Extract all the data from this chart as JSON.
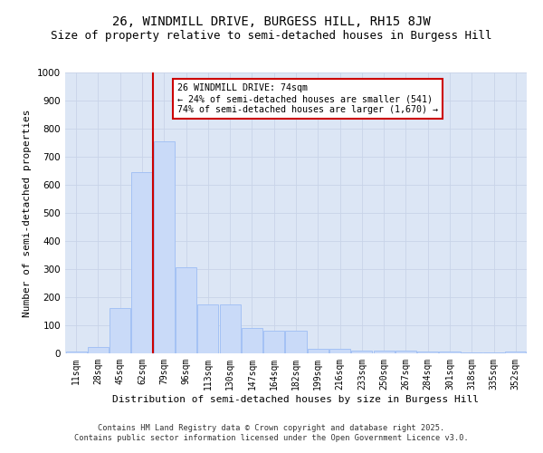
{
  "title": "26, WINDMILL DRIVE, BURGESS HILL, RH15 8JW",
  "subtitle": "Size of property relative to semi-detached houses in Burgess Hill",
  "xlabel": "Distribution of semi-detached houses by size in Burgess Hill",
  "ylabel": "Number of semi-detached properties",
  "bin_labels": [
    "11sqm",
    "28sqm",
    "45sqm",
    "62sqm",
    "79sqm",
    "96sqm",
    "113sqm",
    "130sqm",
    "147sqm",
    "164sqm",
    "182sqm",
    "199sqm",
    "216sqm",
    "233sqm",
    "250sqm",
    "267sqm",
    "284sqm",
    "301sqm",
    "318sqm",
    "335sqm",
    "352sqm"
  ],
  "bar_values": [
    5,
    22,
    160,
    645,
    755,
    305,
    175,
    175,
    90,
    80,
    80,
    15,
    15,
    10,
    10,
    10,
    5,
    5,
    3,
    3,
    5
  ],
  "bar_color": "#c9daf8",
  "bar_edgecolor": "#a4c2f4",
  "vline_bin_index": 4,
  "vline_color": "#cc0000",
  "annotation_text": "26 WINDMILL DRIVE: 74sqm\n← 24% of semi-detached houses are smaller (541)\n74% of semi-detached houses are larger (1,670) →",
  "annotation_box_edgecolor": "#cc0000",
  "annotation_box_facecolor": "#ffffff",
  "grid_color": "#c8d4e8",
  "background_color": "#dce6f5",
  "footer_text": "Contains HM Land Registry data © Crown copyright and database right 2025.\nContains public sector information licensed under the Open Government Licence v3.0.",
  "ylim": [
    0,
    1000
  ],
  "yticks": [
    0,
    100,
    200,
    300,
    400,
    500,
    600,
    700,
    800,
    900,
    1000
  ],
  "title_fontsize": 10,
  "subtitle_fontsize": 9,
  "axis_label_fontsize": 8,
  "tick_fontsize": 7
}
